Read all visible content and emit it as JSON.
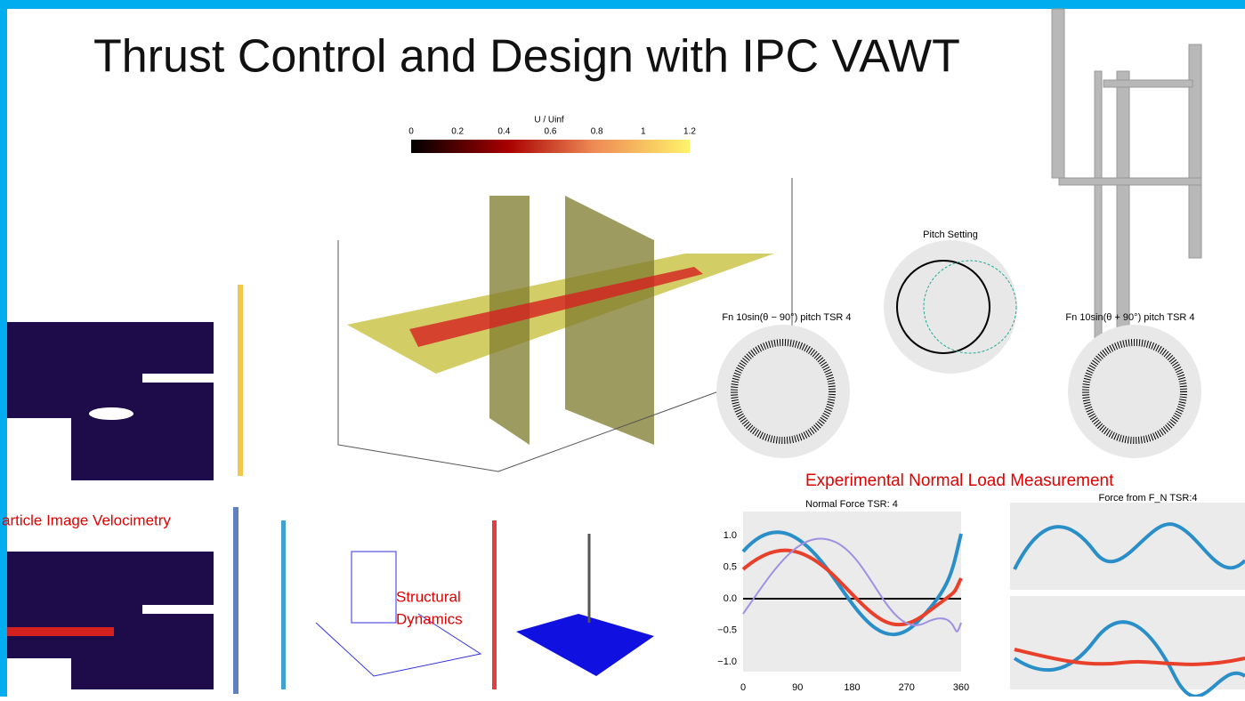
{
  "title": "Thrust Control and Design with IPC VAWT",
  "captions": {
    "piv": "article Image Velocimetry",
    "structural": [
      "Structural",
      "Dynamics"
    ],
    "experimental": "Experimental Normal Load Measurement"
  },
  "cfd": {
    "colorbar_label": "U / Uinf",
    "colorbar_ticks": [
      "0",
      "0.2",
      "0.4",
      "0.6",
      "0.8",
      "1",
      "1.2"
    ]
  },
  "polar": {
    "center_title": "Pitch Setting",
    "left_title": "Fn 10sin(θ − 90°) pitch TSR 4",
    "right_title": "Fn 10sin(θ + 90°) pitch TSR 4"
  },
  "plots": {
    "left_title": "Normal Force TSR: 4",
    "right_title": "Force from F_N TSR:4",
    "y_ticks": [
      "1.0",
      "0.5",
      "0.0",
      "−0.5",
      "−1.0"
    ],
    "x_ticks": [
      "0",
      "90",
      "180",
      "270",
      "360"
    ]
  }
}
